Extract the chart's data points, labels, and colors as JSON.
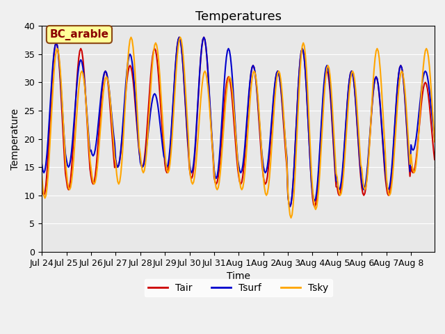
{
  "title": "Temperatures",
  "xlabel": "Time",
  "ylabel": "Temperature",
  "ylim": [
    0,
    40
  ],
  "yticks": [
    0,
    5,
    10,
    15,
    20,
    25,
    30,
    35,
    40
  ],
  "bg_color": "#e8e8e8",
  "line_color_tair": "#cc0000",
  "line_color_tsurf": "#0000cc",
  "line_color_tsky": "#ffa500",
  "legend_label_tair": "Tair",
  "legend_label_tsurf": "Tsurf",
  "legend_label_tsky": "Tsky",
  "annotation_text": "BC_arable",
  "annotation_bbox_facecolor": "#ffff99",
  "annotation_bbox_edgecolor": "#8b4513",
  "annotation_text_color": "#8b0000",
  "xtick_labels": [
    "Jul 24",
    "Jul 25",
    "Jul 26",
    "Jul 27",
    "Jul 28",
    "Jul 29",
    "Jul 30",
    "Jul 31",
    "Aug 1",
    "Aug 2",
    "Aug 3",
    "Aug 4",
    "Aug 5",
    "Aug 6",
    "Aug 7",
    "Aug 8"
  ],
  "title_fontsize": 13,
  "axis_label_fontsize": 10,
  "tick_fontsize": 9,
  "legend_fontsize": 10,
  "linewidth": 1.5,
  "fig_facecolor": "#f0f0f0",
  "peaks_tair": [
    37,
    36,
    32,
    33,
    36,
    38,
    38,
    31,
    33,
    32,
    36,
    32,
    32,
    31,
    33,
    30
  ],
  "troughs_tair": [
    10,
    11,
    12,
    15,
    15,
    14,
    13,
    12,
    12,
    12,
    8,
    8,
    10,
    10,
    10,
    14
  ],
  "peaks_tsurf": [
    37,
    34,
    32,
    35,
    28,
    38,
    38,
    36,
    33,
    32,
    36,
    33,
    32,
    31,
    33,
    32
  ],
  "troughs_tsurf": [
    14,
    15,
    17,
    15,
    15,
    15,
    14,
    13,
    14,
    14,
    8,
    9,
    11,
    11,
    11,
    18
  ],
  "peaks_tsky": [
    36,
    32,
    31,
    38,
    37,
    38,
    32,
    31,
    32,
    32,
    37,
    33,
    32,
    36,
    32,
    36
  ],
  "troughs_tsky": [
    9.5,
    11,
    12,
    12,
    14,
    14,
    12,
    11,
    11,
    10,
    6,
    7.5,
    10,
    11,
    10,
    14
  ],
  "peak_hour_tair": 14,
  "peak_hour_tsurf": 14,
  "peak_hour_tsky": 15,
  "n_days": 16
}
